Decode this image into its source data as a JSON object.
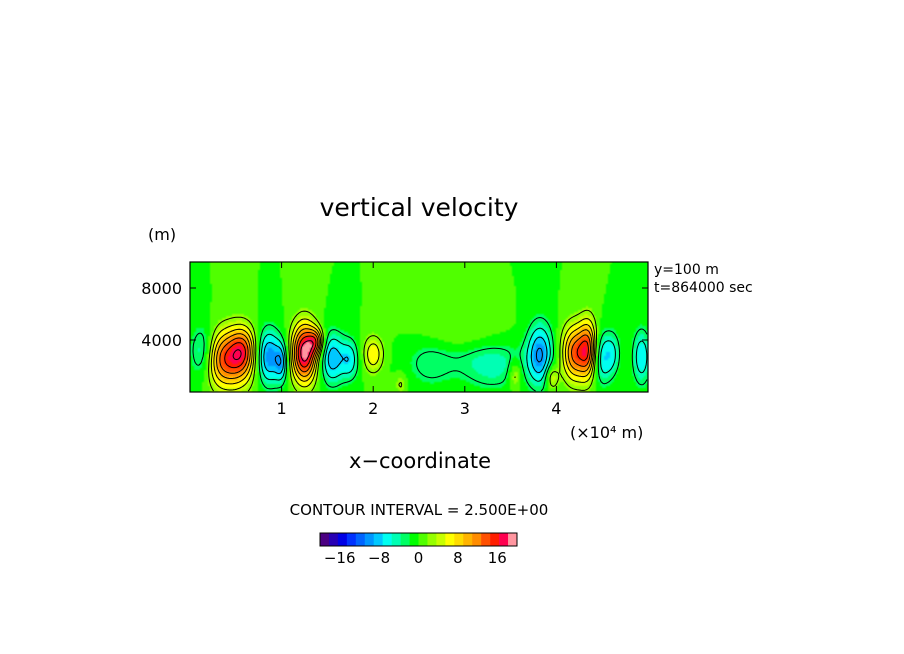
{
  "chart_data": {
    "type": "heatmap",
    "title": "vertical velocity",
    "xlabel": "x−coordinate",
    "x_unit_label": "(×10⁴ m)",
    "y_unit_label": "(m)",
    "xlim": [
      0,
      5
    ],
    "ylim": [
      0,
      10000
    ],
    "x_ticks": [
      {
        "value": 1,
        "label": "1"
      },
      {
        "value": 2,
        "label": "2"
      },
      {
        "value": 3,
        "label": "3"
      },
      {
        "value": 4,
        "label": "4"
      }
    ],
    "y_ticks": [
      {
        "value": 4000,
        "label": "4000"
      },
      {
        "value": 8000,
        "label": "8000"
      }
    ],
    "annotations": [
      "y=100  m",
      "t=864000  sec"
    ],
    "contour_interval_text": "CONTOUR  INTERVAL  =  2.500E+00",
    "contour_interval": 2.5,
    "colorbar": {
      "min": -20,
      "max": 20,
      "tick_labels": [
        {
          "value": -16,
          "label": "−16"
        },
        {
          "value": -8,
          "label": "−8"
        },
        {
          "value": 0,
          "label": "0"
        },
        {
          "value": 8,
          "label": "8"
        },
        {
          "value": 16,
          "label": "16"
        }
      ],
      "colors": [
        "#4b0082",
        "#2800b4",
        "#0000e6",
        "#0032ff",
        "#0064ff",
        "#0096ff",
        "#00c8ff",
        "#00fff0",
        "#00ffb4",
        "#00ff64",
        "#00ff00",
        "#50ff00",
        "#96ff00",
        "#c8ff00",
        "#ffff00",
        "#ffdc00",
        "#ffb400",
        "#ff8c00",
        "#ff5000",
        "#ff1e00",
        "#ff0050",
        "#ff96a0"
      ]
    },
    "cells": [
      {
        "x": 0.45,
        "z": 2500,
        "sx": 0.18,
        "sz": 1600,
        "w": 14
      },
      {
        "x": 0.58,
        "z": 3400,
        "sx": 0.1,
        "sz": 1200,
        "w": 7
      },
      {
        "x": 0.28,
        "z": 2600,
        "sx": 0.1,
        "sz": 1400,
        "w": 3
      },
      {
        "x": 0.15,
        "z": 3000,
        "sx": 0.1,
        "sz": 1500,
        "w": -7
      },
      {
        "x": 0.85,
        "z": 2700,
        "sx": 0.1,
        "sz": 1500,
        "w": -11
      },
      {
        "x": 1.0,
        "z": 2300,
        "sx": 0.05,
        "sz": 1100,
        "w": -7
      },
      {
        "x": 1.25,
        "z": 3000,
        "sx": 0.1,
        "sz": 1600,
        "w": 19
      },
      {
        "x": 1.38,
        "z": 3900,
        "sx": 0.06,
        "sz": 700,
        "w": 9
      },
      {
        "x": 1.55,
        "z": 2600,
        "sx": 0.1,
        "sz": 1400,
        "w": -9
      },
      {
        "x": 1.75,
        "z": 2500,
        "sx": 0.07,
        "sz": 1100,
        "w": -6
      },
      {
        "x": 2.0,
        "z": 2900,
        "sx": 0.08,
        "sz": 1000,
        "w": 7
      },
      {
        "x": 2.3,
        "z": 600,
        "sx": 0.05,
        "sz": 600,
        "w": 3
      },
      {
        "x": 2.62,
        "z": 2100,
        "sx": 0.18,
        "sz": 1300,
        "w": -3
      },
      {
        "x": 2.95,
        "z": 4400,
        "sx": 0.3,
        "sz": 1200,
        "w": 2
      },
      {
        "x": 3.3,
        "z": 1900,
        "sx": 0.25,
        "sz": 1300,
        "w": -4
      },
      {
        "x": 3.55,
        "z": 1300,
        "sx": 0.05,
        "sz": 800,
        "w": 5
      },
      {
        "x": 3.82,
        "z": 2900,
        "sx": 0.1,
        "sz": 1700,
        "w": -10
      },
      {
        "x": 3.95,
        "z": 1100,
        "sx": 0.05,
        "sz": 700,
        "w": 6
      },
      {
        "x": 4.2,
        "z": 3000,
        "sx": 0.1,
        "sz": 1500,
        "w": 13
      },
      {
        "x": 4.35,
        "z": 3300,
        "sx": 0.07,
        "sz": 1600,
        "w": 12
      },
      {
        "x": 4.5,
        "z": 2600,
        "sx": 0.08,
        "sz": 1400,
        "w": -7
      },
      {
        "x": 4.62,
        "z": 3000,
        "sx": 0.06,
        "sz": 1200,
        "w": -4
      },
      {
        "x": 4.93,
        "z": 2700,
        "sx": 0.07,
        "sz": 1500,
        "w": -7
      },
      {
        "x": 3.05,
        "z": 2800,
        "sx": 0.4,
        "sz": 1000,
        "w": -1.5
      }
    ]
  }
}
